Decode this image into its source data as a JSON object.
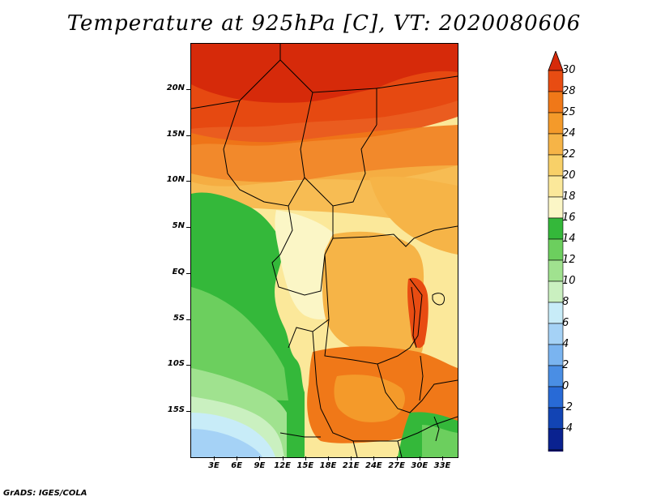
{
  "title": "Temperature at 925hPa [C], VT: 2020080606",
  "footer": "GrADS: IGES/COLA",
  "map": {
    "lat_labels": [
      "20N",
      "15N",
      "10N",
      "5N",
      "EQ",
      "5S",
      "10S",
      "15S"
    ],
    "lon_labels": [
      "3E",
      "6E",
      "9E",
      "12E",
      "15E",
      "18E",
      "21E",
      "24E",
      "27E",
      "30E",
      "33E"
    ],
    "lat_range": [
      -20,
      25
    ],
    "lon_range": [
      0,
      35
    ],
    "field": "temperature_925hPa_C"
  },
  "colorbar": {
    "labels": [
      "30",
      "28",
      "25",
      "24",
      "22",
      "20",
      "18",
      "16",
      "14",
      "12",
      "10",
      "8",
      "6",
      "4",
      "2",
      "0",
      "-2",
      "-4"
    ],
    "colors": [
      "#d62a0a",
      "#e84c12",
      "#f07818",
      "#f49a2a",
      "#f6b447",
      "#f8d068",
      "#fbe89a",
      "#fbf6c6",
      "#34b83a",
      "#6ccf5e",
      "#a0e28f",
      "#caf0c0",
      "#c8ecf8",
      "#a5d2f6",
      "#7ab4f0",
      "#4a8ee4",
      "#286ad6",
      "#1244b4",
      "#0a2290",
      "#0c0c6c",
      "#dcdcf6"
    ],
    "arrow_top_color": "#d62a0a",
    "arrow_bottom_color": "#dcdcf6"
  }
}
